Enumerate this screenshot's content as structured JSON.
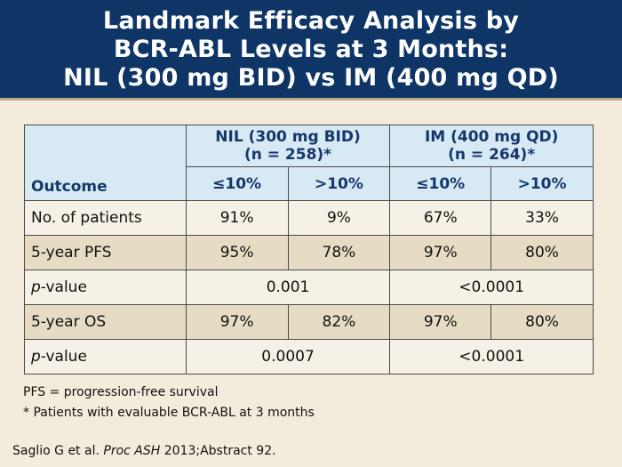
{
  "title": {
    "line1": "Landmark Efficacy Analysis by",
    "line2": "BCR-ABL Levels at 3 Months:",
    "line3": "NIL (300 mg BID) vs IM (400 mg QD)"
  },
  "table": {
    "outcome_header": "Outcome",
    "groups": [
      {
        "name": "NIL (300 mg BID)",
        "n": "(n = 258)*"
      },
      {
        "name": "IM (400 mg QD)",
        "n": "(n = 264)*"
      }
    ],
    "subheaders": [
      "≤10%",
      ">10%",
      "≤10%",
      ">10%"
    ],
    "rows": [
      {
        "label": "No. of patients",
        "values": [
          "91%",
          "9%",
          "67%",
          "33%"
        ]
      },
      {
        "label": "5-year PFS",
        "values": [
          "95%",
          "78%",
          "97%",
          "80%"
        ]
      },
      {
        "label_italic": "p",
        "label_rest": "-value",
        "nil": "0.001",
        "im": "<0.0001"
      },
      {
        "label": "5-year OS",
        "values": [
          "97%",
          "82%",
          "97%",
          "80%"
        ]
      },
      {
        "label_italic": "p",
        "label_rest": "-value",
        "nil": "0.0007",
        "im": "<0.0001"
      }
    ]
  },
  "footnotes": {
    "abbrev": "PFS = progression-free survival",
    "asterisk": "* Patients with evaluable BCR-ABL at 3 months"
  },
  "citation": {
    "authors": "Saglio G et al. ",
    "journal": "Proc ASH",
    "rest": " 2013;Abstract 92."
  }
}
